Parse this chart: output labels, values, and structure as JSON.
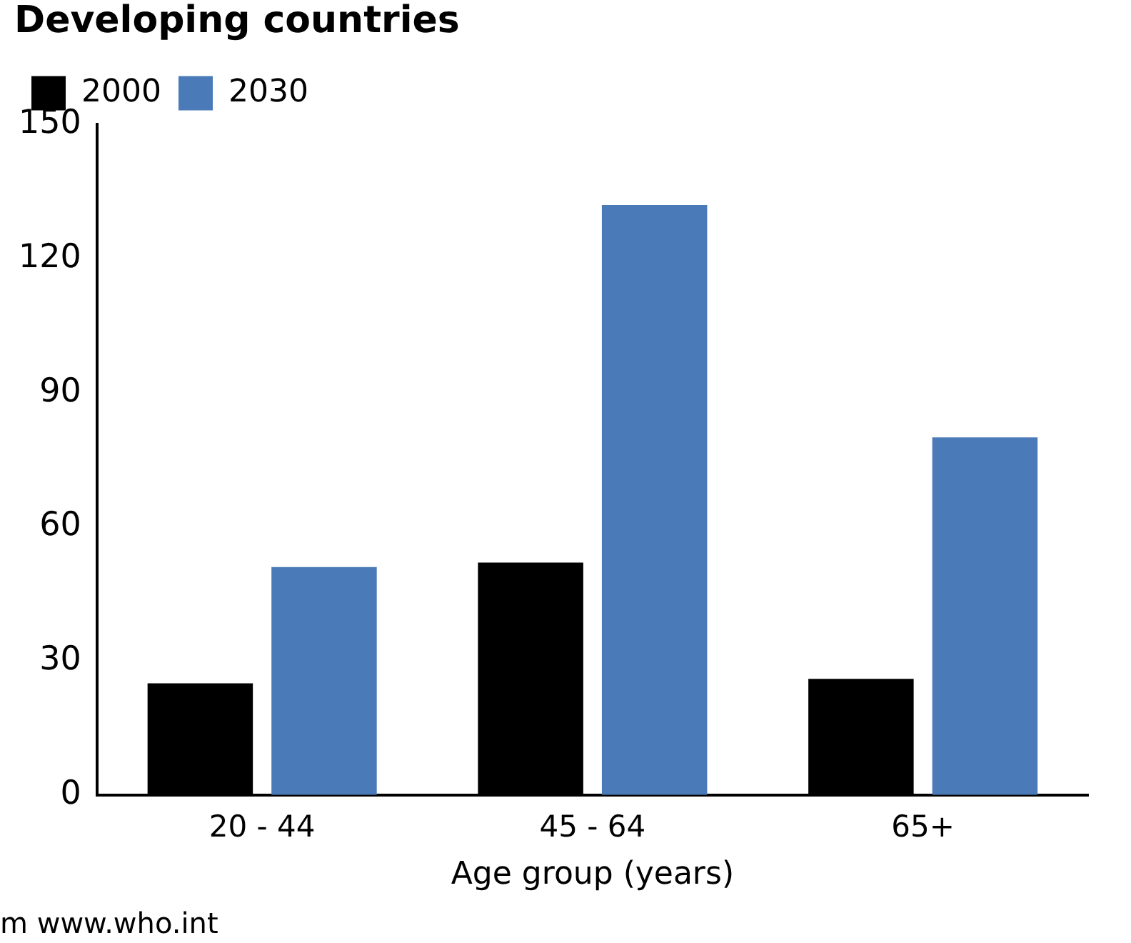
{
  "chart_data": {
    "type": "bar",
    "title": "Developing countries",
    "xlabel": "Age group (years)",
    "categories": [
      "20 - 44",
      "45 - 64",
      "65+"
    ],
    "series": [
      {
        "name": "2000",
        "color": "#000000",
        "values": [
          25,
          52,
          26
        ]
      },
      {
        "name": "2030",
        "color": "#4a7ab8",
        "values": [
          51,
          132,
          80
        ]
      }
    ],
    "ylim": [
      0,
      150
    ],
    "yticks": [
      0,
      30,
      60,
      90,
      120,
      150
    ],
    "grid": false,
    "legend": "top left",
    "annotations": [
      "m www.who.int"
    ]
  }
}
